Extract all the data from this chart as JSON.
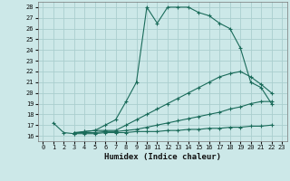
{
  "xlabel": "Humidex (Indice chaleur)",
  "bg_color": "#cce8e8",
  "grid_color": "#aacece",
  "line_color": "#1a6b5a",
  "xlim": [
    -0.5,
    23.5
  ],
  "ylim": [
    15.5,
    28.5
  ],
  "xticks": [
    0,
    1,
    2,
    3,
    4,
    5,
    6,
    7,
    8,
    9,
    10,
    11,
    12,
    13,
    14,
    15,
    16,
    17,
    18,
    19,
    20,
    21,
    22,
    23
  ],
  "yticks": [
    16,
    17,
    18,
    19,
    20,
    21,
    22,
    23,
    24,
    25,
    26,
    27,
    28
  ],
  "line1_x": [
    1,
    2,
    3,
    4,
    5,
    6,
    7,
    8,
    9,
    10,
    11,
    12,
    13,
    14,
    15,
    16,
    17,
    18,
    19,
    20,
    21,
    22
  ],
  "line1_y": [
    17.2,
    16.3,
    16.2,
    16.4,
    16.5,
    17.0,
    17.5,
    19.2,
    21.0,
    28.0,
    26.5,
    28.0,
    28.0,
    28.0,
    27.5,
    27.2,
    26.5,
    26.0,
    24.2,
    21.0,
    20.5,
    19.0
  ],
  "line2_x": [
    3,
    4,
    5,
    6,
    7,
    8,
    9,
    10,
    11,
    12,
    13,
    14,
    15,
    16,
    17,
    18,
    19,
    20,
    21,
    22
  ],
  "line2_y": [
    16.3,
    16.4,
    16.5,
    16.5,
    16.5,
    17.0,
    17.5,
    18.0,
    18.5,
    19.0,
    19.5,
    20.0,
    20.5,
    21.0,
    21.5,
    21.8,
    22.0,
    21.5,
    20.8,
    20.0
  ],
  "line3_x": [
    3,
    4,
    5,
    6,
    7,
    8,
    9,
    10,
    11,
    12,
    13,
    14,
    15,
    16,
    17,
    18,
    19,
    20,
    21,
    22
  ],
  "line3_y": [
    16.3,
    16.3,
    16.3,
    16.4,
    16.4,
    16.5,
    16.6,
    16.8,
    17.0,
    17.2,
    17.4,
    17.6,
    17.8,
    18.0,
    18.2,
    18.5,
    18.7,
    19.0,
    19.2,
    19.2
  ],
  "line4_x": [
    3,
    4,
    5,
    6,
    7,
    8,
    9,
    10,
    11,
    12,
    13,
    14,
    15,
    16,
    17,
    18,
    19,
    20,
    21,
    22
  ],
  "line4_y": [
    16.2,
    16.2,
    16.2,
    16.3,
    16.3,
    16.3,
    16.4,
    16.4,
    16.4,
    16.5,
    16.5,
    16.6,
    16.6,
    16.7,
    16.7,
    16.8,
    16.8,
    16.9,
    16.9,
    17.0
  ]
}
